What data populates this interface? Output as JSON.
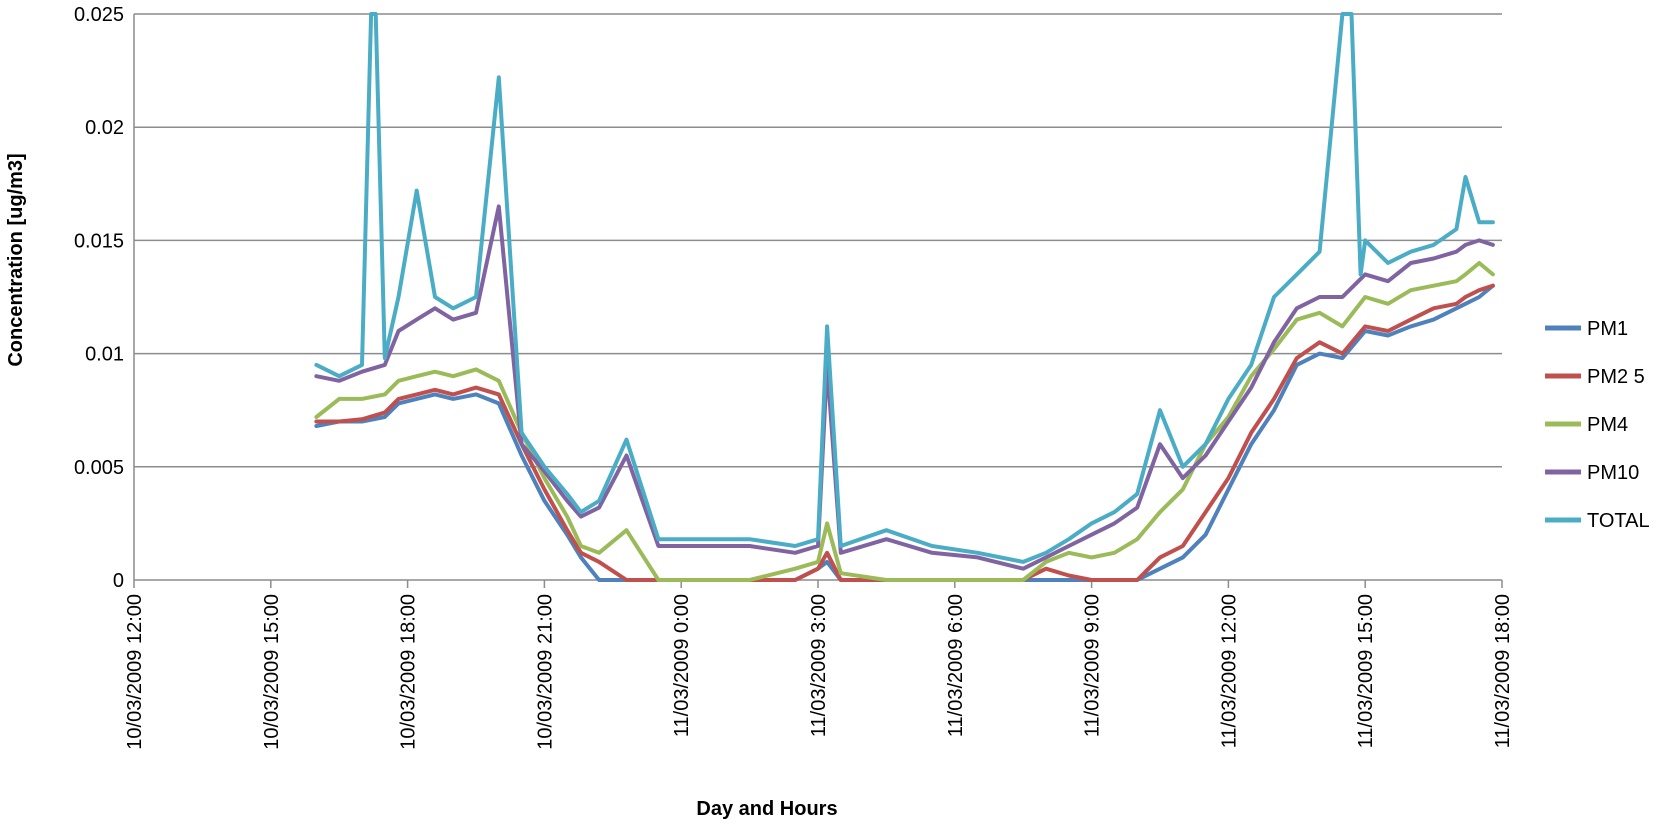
{
  "chart_data": {
    "type": "line",
    "title": "",
    "xlabel": "Day and Hours",
    "ylabel": "Concentration [ug/m3]",
    "ylim": [
      0,
      0.025
    ],
    "y_ticks": [
      "0",
      "0.005",
      "0.01",
      "0.015",
      "0.02",
      "0.025"
    ],
    "x_ticks": [
      "10/03/2009 12:00",
      "10/03/2009 15:00",
      "10/03/2009 18:00",
      "10/03/2009 21:00",
      "11/03/2009 0:00",
      "11/03/2009 3:00",
      "11/03/2009 6:00",
      "11/03/2009 9:00",
      "11/03/2009 12:00",
      "11/03/2009 15:00",
      "11/03/2009 18:00"
    ],
    "xlim": [
      "10/03/2009 12:00",
      "11/03/2009 18:00"
    ],
    "x_unit": "hours from 10/03/2009 12:00",
    "grid": "horizontal",
    "legend_position": "right",
    "series": [
      {
        "name": "PM1",
        "color": "#4F81BD",
        "x": [
          4.0,
          4.5,
          5.0,
          5.5,
          5.8,
          6.2,
          6.6,
          7.0,
          7.5,
          8.0,
          8.5,
          9.0,
          9.5,
          9.8,
          10.2,
          10.8,
          11.5,
          12.5,
          13.5,
          14.5,
          15.0,
          15.2,
          15.5,
          16.5,
          17.5,
          18.5,
          19.5,
          20.0,
          20.5,
          21.0,
          21.5,
          22.0,
          22.5,
          23.0,
          23.5,
          24.0,
          24.5,
          25.0,
          25.5,
          26.0,
          26.5,
          27.0,
          27.5,
          28.0,
          28.5,
          29.0,
          29.2,
          29.5,
          29.8
        ],
        "values": [
          0.0068,
          0.007,
          0.007,
          0.0072,
          0.0078,
          0.008,
          0.0082,
          0.008,
          0.0082,
          0.0078,
          0.0055,
          0.0035,
          0.002,
          0.001,
          0.0,
          0.0,
          0.0,
          0.0,
          0.0,
          0.0,
          0.0005,
          0.0008,
          0.0,
          0.0,
          0.0,
          0.0,
          0.0,
          0.0,
          0.0,
          0.0,
          0.0,
          0.0,
          0.0005,
          0.001,
          0.002,
          0.004,
          0.006,
          0.0075,
          0.0095,
          0.01,
          0.0098,
          0.011,
          0.0108,
          0.0112,
          0.0115,
          0.012,
          0.0122,
          0.0125,
          0.013
        ]
      },
      {
        "name": "PM2 5",
        "color": "#C0504D",
        "x": [
          4.0,
          4.5,
          5.0,
          5.5,
          5.8,
          6.2,
          6.6,
          7.0,
          7.5,
          8.0,
          8.5,
          9.0,
          9.5,
          9.8,
          10.2,
          10.8,
          11.5,
          12.5,
          13.5,
          14.5,
          15.0,
          15.2,
          15.5,
          16.5,
          17.5,
          18.5,
          19.5,
          20.0,
          20.5,
          21.0,
          21.5,
          22.0,
          22.5,
          23.0,
          23.5,
          24.0,
          24.5,
          25.0,
          25.5,
          26.0,
          26.5,
          27.0,
          27.5,
          28.0,
          28.5,
          29.0,
          29.2,
          29.5,
          29.8
        ],
        "values": [
          0.007,
          0.007,
          0.0071,
          0.0074,
          0.008,
          0.0082,
          0.0084,
          0.0082,
          0.0085,
          0.0082,
          0.006,
          0.004,
          0.0022,
          0.0012,
          0.0008,
          0.0,
          0.0,
          0.0,
          0.0,
          0.0,
          0.0005,
          0.0012,
          0.0,
          0.0,
          0.0,
          0.0,
          0.0,
          0.0005,
          0.0002,
          0.0,
          0.0,
          0.0,
          0.001,
          0.0015,
          0.003,
          0.0045,
          0.0065,
          0.008,
          0.0098,
          0.0105,
          0.01,
          0.0112,
          0.011,
          0.0115,
          0.012,
          0.0122,
          0.0125,
          0.0128,
          0.013
        ]
      },
      {
        "name": "PM4",
        "color": "#9BBB59",
        "x": [
          4.0,
          4.5,
          5.0,
          5.5,
          5.8,
          6.2,
          6.6,
          7.0,
          7.5,
          8.0,
          8.5,
          9.0,
          9.5,
          9.8,
          10.2,
          10.8,
          11.5,
          12.5,
          13.5,
          14.5,
          15.0,
          15.2,
          15.5,
          16.5,
          17.5,
          18.5,
          19.5,
          20.0,
          20.5,
          21.0,
          21.5,
          22.0,
          22.5,
          23.0,
          23.5,
          24.0,
          24.5,
          25.0,
          25.5,
          26.0,
          26.5,
          27.0,
          27.5,
          28.0,
          28.5,
          29.0,
          29.2,
          29.5,
          29.8
        ],
        "values": [
          0.0072,
          0.008,
          0.008,
          0.0082,
          0.0088,
          0.009,
          0.0092,
          0.009,
          0.0093,
          0.0088,
          0.0065,
          0.0045,
          0.0028,
          0.0015,
          0.0012,
          0.0022,
          0.0,
          0.0,
          0.0,
          0.0005,
          0.0008,
          0.0025,
          0.0003,
          0.0,
          0.0,
          0.0,
          0.0,
          0.0008,
          0.0012,
          0.001,
          0.0012,
          0.0018,
          0.003,
          0.004,
          0.006,
          0.0072,
          0.009,
          0.0102,
          0.0115,
          0.0118,
          0.0112,
          0.0125,
          0.0122,
          0.0128,
          0.013,
          0.0132,
          0.0135,
          0.014,
          0.0135
        ]
      },
      {
        "name": "PM10",
        "color": "#8064A2",
        "x": [
          4.0,
          4.5,
          5.0,
          5.5,
          5.8,
          6.2,
          6.6,
          7.0,
          7.5,
          8.0,
          8.5,
          9.0,
          9.5,
          9.8,
          10.2,
          10.8,
          11.5,
          12.5,
          13.5,
          14.5,
          15.0,
          15.2,
          15.5,
          16.5,
          17.5,
          18.5,
          19.5,
          20.0,
          20.5,
          21.0,
          21.5,
          22.0,
          22.5,
          23.0,
          23.5,
          24.0,
          24.5,
          25.0,
          25.5,
          26.0,
          26.5,
          27.0,
          27.5,
          28.0,
          28.5,
          29.0,
          29.2,
          29.5,
          29.8
        ],
        "values": [
          0.009,
          0.0088,
          0.0092,
          0.0095,
          0.011,
          0.0115,
          0.012,
          0.0115,
          0.0118,
          0.0165,
          0.006,
          0.0048,
          0.0035,
          0.0028,
          0.0032,
          0.0055,
          0.0015,
          0.0015,
          0.0015,
          0.0012,
          0.0015,
          0.0095,
          0.0012,
          0.0018,
          0.0012,
          0.001,
          0.0005,
          0.001,
          0.0015,
          0.002,
          0.0025,
          0.0032,
          0.006,
          0.0045,
          0.0055,
          0.007,
          0.0085,
          0.0105,
          0.012,
          0.0125,
          0.0125,
          0.0135,
          0.0132,
          0.014,
          0.0142,
          0.0145,
          0.0148,
          0.015,
          0.0148
        ]
      },
      {
        "name": "TOTAL",
        "color": "#4BACC6",
        "x": [
          4.0,
          4.5,
          5.0,
          5.2,
          5.3,
          5.5,
          5.8,
          6.2,
          6.6,
          7.0,
          7.5,
          8.0,
          8.5,
          9.0,
          9.5,
          9.8,
          10.2,
          10.8,
          11.5,
          12.5,
          13.5,
          14.5,
          15.0,
          15.2,
          15.5,
          16.5,
          17.5,
          18.5,
          19.5,
          20.0,
          20.5,
          21.0,
          21.5,
          22.0,
          22.5,
          23.0,
          23.5,
          24.0,
          24.5,
          25.0,
          25.5,
          26.0,
          26.5,
          26.7,
          26.9,
          27.0,
          27.5,
          28.0,
          28.5,
          29.0,
          29.2,
          29.5,
          29.8
        ],
        "values": [
          0.0095,
          0.009,
          0.0095,
          0.025,
          0.025,
          0.0098,
          0.0125,
          0.0172,
          0.0125,
          0.012,
          0.0125,
          0.0222,
          0.0065,
          0.005,
          0.0038,
          0.003,
          0.0035,
          0.0062,
          0.0018,
          0.0018,
          0.0018,
          0.0015,
          0.0018,
          0.0112,
          0.0015,
          0.0022,
          0.0015,
          0.0012,
          0.0008,
          0.0012,
          0.0018,
          0.0025,
          0.003,
          0.0038,
          0.0075,
          0.005,
          0.006,
          0.008,
          0.0095,
          0.0125,
          0.0135,
          0.0145,
          0.025,
          0.025,
          0.0135,
          0.015,
          0.014,
          0.0145,
          0.0148,
          0.0155,
          0.0178,
          0.0158,
          0.0158
        ]
      }
    ]
  }
}
